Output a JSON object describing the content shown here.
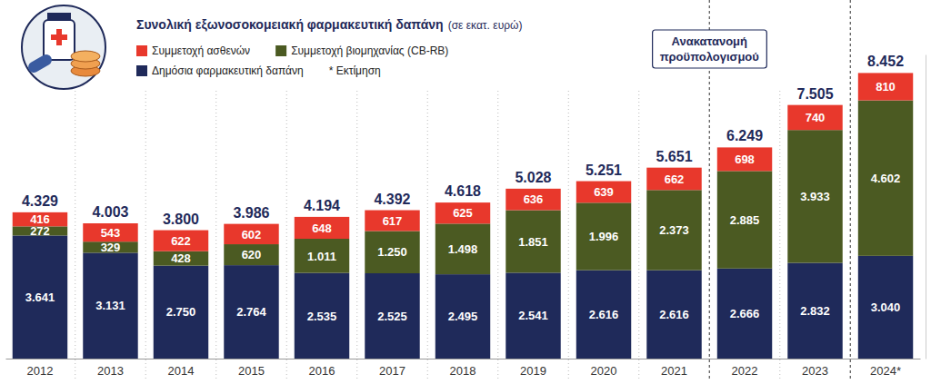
{
  "chart_data": {
    "type": "bar",
    "title": "Συνολική εξωνοσοκομειακή φαρμακευτική δαπάνη",
    "subtitle": "(σε εκατ. ευρώ)",
    "note": "* Εκτίμηση",
    "annotation": "Ανακατανομή προϋπολογισμού",
    "categories": [
      "2012",
      "2013",
      "2014",
      "2015",
      "2016",
      "2017",
      "2018",
      "2019",
      "2020",
      "2021",
      "2022",
      "2023",
      "2024*"
    ],
    "series": [
      {
        "name": "Δημόσια φαρμακευτική δαπάνη",
        "color": "#1f2a5a",
        "values": [
          3641,
          3131,
          2750,
          2764,
          2535,
          2525,
          2495,
          2541,
          2616,
          2616,
          2666,
          2832,
          3040
        ],
        "value_labels": [
          "3.641",
          "3.131",
          "2.750",
          "2.764",
          "2.535",
          "2.525",
          "2.495",
          "2.541",
          "2.616",
          "2.616",
          "2.666",
          "2.832",
          "3.040"
        ]
      },
      {
        "name": "Συμμετοχή βιομηχανίας (CB-RB)",
        "color": "#4b5a22",
        "values": [
          272,
          329,
          428,
          620,
          1011,
          1250,
          1498,
          1851,
          1996,
          2373,
          2885,
          3933,
          4602
        ],
        "value_labels": [
          "272",
          "329",
          "428",
          "620",
          "1.011",
          "1.250",
          "1.498",
          "1.851",
          "1.996",
          "2.373",
          "2.885",
          "3.933",
          "4.602"
        ]
      },
      {
        "name": "Συμμετοχή ασθενών",
        "color": "#e8382c",
        "values": [
          416,
          543,
          622,
          602,
          648,
          617,
          625,
          636,
          639,
          662,
          698,
          740,
          810
        ],
        "value_labels": [
          "416",
          "543",
          "622",
          "602",
          "648",
          "617",
          "625",
          "636",
          "639",
          "662",
          "698",
          "740",
          "810"
        ]
      }
    ],
    "totals": [
      4329,
      4003,
      3800,
      3986,
      4194,
      4392,
      4618,
      5028,
      5251,
      5651,
      6249,
      7505,
      8452
    ],
    "total_labels": [
      "4.329",
      "4.003",
      "3.800",
      "3.986",
      "4.194",
      "4.392",
      "4.618",
      "5.028",
      "5.251",
      "5.651",
      "6.249",
      "7.505",
      "8.452"
    ],
    "ylim": [
      0,
      9000
    ],
    "stacked": true,
    "data_labels": true,
    "grid": false,
    "legend": "top-left",
    "tick_labels": "x"
  }
}
